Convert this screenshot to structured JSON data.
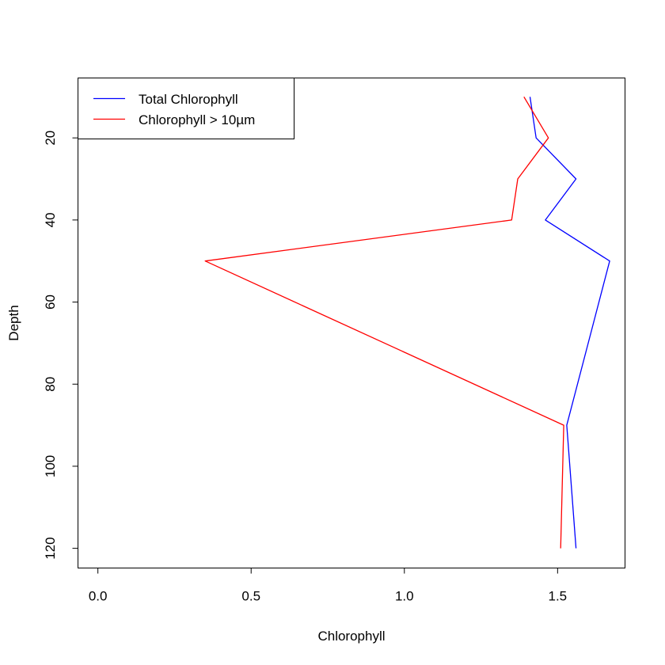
{
  "chart_data": {
    "type": "line",
    "xlabel": "Chlorophyll",
    "ylabel": "Depth",
    "xlim": [
      -0.065,
      1.72
    ],
    "ylim": [
      124.8,
      5.4
    ],
    "y_reversed": true,
    "x_ticks": [
      0.0,
      0.5,
      1.0,
      1.5
    ],
    "x_tick_labels": [
      "0.0",
      "0.5",
      "1.0",
      "1.5"
    ],
    "y_ticks": [
      20,
      40,
      60,
      80,
      100,
      120
    ],
    "y_tick_labels": [
      "20",
      "40",
      "60",
      "80",
      "100",
      "120"
    ],
    "grid": false,
    "legend_position": "top-left",
    "series": [
      {
        "name": "Total Chlorophyll",
        "color": "#0000ff",
        "x": [
          1.41,
          1.43,
          1.56,
          1.46,
          1.67,
          1.53,
          1.56
        ],
        "y": [
          10,
          20,
          30,
          40,
          50,
          90,
          120
        ]
      },
      {
        "name": "Chlorophyll > 10µm",
        "color": "#ff0000",
        "x": [
          1.39,
          1.47,
          1.37,
          1.35,
          0.35,
          1.52,
          1.51
        ],
        "y": [
          10,
          20,
          30,
          40,
          50,
          90,
          120
        ]
      }
    ]
  }
}
